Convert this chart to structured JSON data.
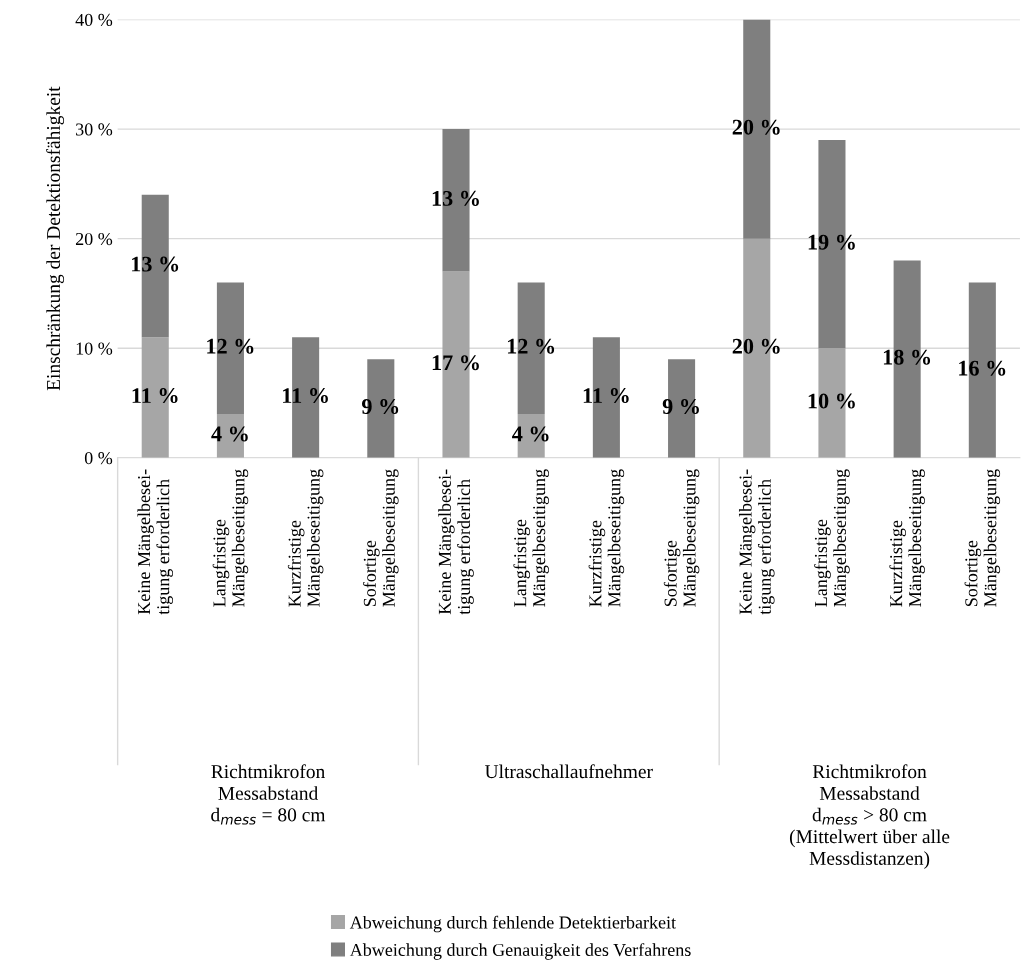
{
  "chart_data": {
    "type": "bar",
    "stacked": true,
    "ylabel": "Einschränkung der Detektionsfähigkeit",
    "categories": [
      "Keine Mängelbesei-\ntigung erforderlich",
      "Langfristige\nMängelbeseitigung",
      "Kurzfristige\nMängelbeseitigung",
      "Sofortige\nMängelbeseitigung",
      "Keine Mängelbesei-\ntigung erforderlich",
      "Langfristige\nMängelbeseitigung",
      "Kurzfristige\nMängelbeseitigung",
      "Sofortige\nMängelbeseitigung",
      "Keine Mängelbesei-\ntigung erforderlich",
      "Langfristige\nMängelbeseitigung",
      "Kurzfristige\nMängelbeseitigung",
      "Sofortige\nMängelbeseitigung"
    ],
    "series": [
      {
        "name": "Abweichung durch fehlende Detektierbarkeit",
        "color": "#a6a6a6",
        "values": [
          11,
          4,
          0,
          0,
          17,
          4,
          0,
          0,
          20,
          10,
          0,
          0
        ],
        "value_labels": [
          "11 %",
          "4 %",
          null,
          null,
          "17 %",
          "4 %",
          null,
          null,
          "20 %",
          "10 %",
          null,
          null
        ]
      },
      {
        "name": "Abweichung durch Genauigkeit des Verfahrens",
        "color": "#7f7f7f",
        "values": [
          13,
          12,
          11,
          9,
          13,
          12,
          11,
          9,
          20,
          19,
          18,
          16
        ],
        "value_labels": [
          "13 %",
          "12 %",
          "11 %",
          "9 %",
          "13 %",
          "12 %",
          "11 %",
          "9 %",
          "20 %",
          "19 %",
          "18 %",
          "16 %"
        ]
      }
    ],
    "annotations": [
      "Richtmikrofon\nMessabstand\nd$_{mess}$ = 80 cm",
      "Ultraschallaufnehmer",
      "Richtmikrofon\nMessabstand\nd$_{mess}$ > 80 cm\n(Mittelwert über alle\nMessdistanzen)"
    ],
    "ylim": [
      0,
      40
    ],
    "yticks": [
      {
        "value": 0,
        "label": "0 %"
      },
      {
        "value": 10,
        "label": "10 %"
      },
      {
        "value": 20,
        "label": "20 %"
      },
      {
        "value": 30,
        "label": "30 %"
      },
      {
        "value": 40,
        "label": "40 %"
      }
    ],
    "grid": "y",
    "legend": "bottom"
  }
}
